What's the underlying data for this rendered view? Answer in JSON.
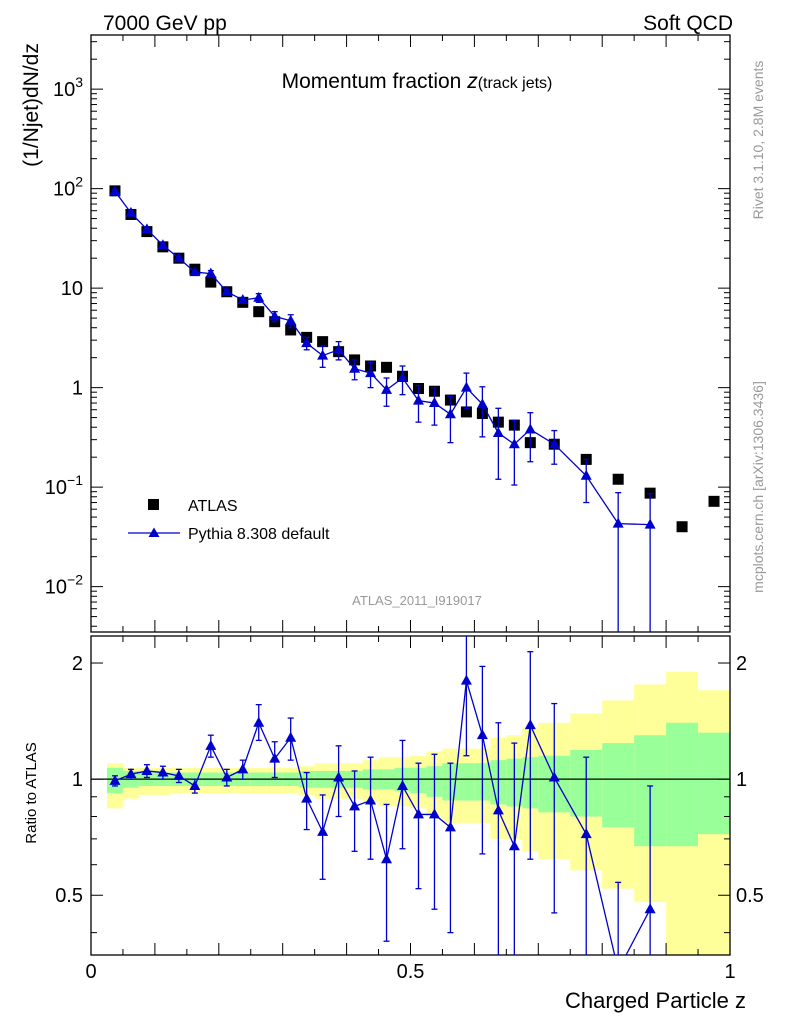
{
  "header": {
    "left": "7000 GeV pp",
    "right": "Soft QCD"
  },
  "side_labels": {
    "rivet": "Rivet 3.1.10,  2.8M events",
    "mcplots": "mcplots.cern.ch [arXiv:1306.3436]"
  },
  "colors": {
    "data": "#000000",
    "mc": "#0000cc",
    "band_inner": "#99ff99",
    "band_outer": "#ffff99"
  },
  "chart_data": [
    {
      "type": "scatter",
      "title": "Momentum fraction z(track jets)",
      "title_main": "Momentum fraction ",
      "title_italic": "z",
      "title_sub": "(track jets)",
      "ylabel": "(1/Njet)dN/dz",
      "analysis_label": "ATLAS_2011_I919017",
      "yscale": "log",
      "xlim": [
        0,
        1
      ],
      "ylim": [
        0.0035,
        3500
      ],
      "ytick_labels": [
        {
          "value": 0.01,
          "base": "10",
          "exp": "−2"
        },
        {
          "value": 0.1,
          "base": "10",
          "exp": "−1"
        },
        {
          "value": 1,
          "base": "1",
          "exp": ""
        },
        {
          "value": 10,
          "base": "10",
          "exp": ""
        },
        {
          "value": 100,
          "base": "10",
          "exp": "2"
        },
        {
          "value": 1000,
          "base": "10",
          "exp": "3"
        }
      ],
      "legend": {
        "position": "bottom-left",
        "entries": [
          "ATLAS",
          "Pythia 8.308 default"
        ]
      },
      "series": [
        {
          "name": "ATLAS",
          "marker": "square",
          "x": [
            0.0375,
            0.0625,
            0.0875,
            0.1125,
            0.1375,
            0.1625,
            0.1875,
            0.2125,
            0.2375,
            0.2625,
            0.2875,
            0.3125,
            0.3375,
            0.3625,
            0.3875,
            0.4125,
            0.4375,
            0.4625,
            0.4875,
            0.5125,
            0.5375,
            0.5625,
            0.5875,
            0.6125,
            0.6375,
            0.6625,
            0.6875,
            0.725,
            0.775,
            0.825,
            0.875,
            0.925,
            0.975
          ],
          "y": [
            95,
            55,
            37,
            26,
            20,
            15.5,
            11.5,
            9.2,
            7.2,
            5.8,
            4.6,
            3.8,
            3.2,
            2.9,
            2.3,
            1.9,
            1.65,
            1.6,
            1.3,
            0.98,
            0.92,
            0.75,
            0.57,
            0.55,
            0.45,
            0.42,
            0.28,
            0.27,
            0.19,
            0.12,
            0.087,
            0.04,
            0.072
          ]
        },
        {
          "name": "Pythia 8.308 default",
          "marker": "triangle",
          "x": [
            0.0375,
            0.0625,
            0.0875,
            0.1125,
            0.1375,
            0.1625,
            0.1875,
            0.2125,
            0.2375,
            0.2625,
            0.2875,
            0.3125,
            0.3375,
            0.3625,
            0.3875,
            0.4125,
            0.4375,
            0.4625,
            0.4875,
            0.5125,
            0.5375,
            0.5625,
            0.5875,
            0.6125,
            0.6375,
            0.6625,
            0.6875,
            0.725,
            0.775,
            0.825,
            0.875
          ],
          "y": [
            94,
            57,
            39,
            27,
            20,
            14.5,
            14,
            9.2,
            7.6,
            8.0,
            5.2,
            4.7,
            2.8,
            2.1,
            2.4,
            1.55,
            1.4,
            0.95,
            1.25,
            0.74,
            0.7,
            0.54,
            1.0,
            0.68,
            0.35,
            0.27,
            0.38,
            0.27,
            0.13,
            0.043,
            0.042
          ],
          "ylow": [
            90,
            55,
            37,
            26,
            19,
            14,
            13,
            8.8,
            7.2,
            7.2,
            4.6,
            4.0,
            2.4,
            1.6,
            1.9,
            1.2,
            1.0,
            0.65,
            0.85,
            0.45,
            0.42,
            0.28,
            0.62,
            0.32,
            0.12,
            0.105,
            0.18,
            0.17,
            0.07,
            0.003,
            0.003
          ],
          "yhigh": [
            98,
            59,
            41,
            28,
            21,
            15,
            15,
            9.6,
            8.0,
            8.8,
            5.8,
            5.4,
            3.2,
            2.6,
            2.9,
            1.9,
            1.8,
            1.25,
            1.65,
            1.05,
            1.0,
            0.82,
            1.4,
            1.02,
            0.62,
            0.47,
            0.56,
            0.37,
            0.19,
            0.088,
            0.086
          ]
        }
      ]
    },
    {
      "type": "scatter",
      "ylabel": "Ratio to ATLAS",
      "xlabel": "Charged Particle z",
      "xlim": [
        0,
        1
      ],
      "ylim": [
        0.35,
        2.35
      ],
      "yscale": "log",
      "xtick_labels": [
        {
          "value": 0,
          "label": "0"
        },
        {
          "value": 0.5,
          "label": "0.5"
        },
        {
          "value": 1,
          "label": "1"
        }
      ],
      "ytick_labels": [
        {
          "value": 0.5,
          "label": "0.5"
        },
        {
          "value": 1,
          "label": "1"
        },
        {
          "value": 2,
          "label": "2"
        }
      ],
      "bands": {
        "edges": [
          0.025,
          0.05,
          0.075,
          0.1,
          0.125,
          0.15,
          0.175,
          0.2,
          0.225,
          0.25,
          0.275,
          0.3,
          0.325,
          0.35,
          0.375,
          0.4,
          0.425,
          0.45,
          0.475,
          0.5,
          0.525,
          0.55,
          0.575,
          0.6,
          0.625,
          0.65,
          0.675,
          0.7,
          0.75,
          0.8,
          0.85,
          0.9,
          0.95,
          1.0
        ],
        "inner_low": [
          0.92,
          0.95,
          0.96,
          0.96,
          0.96,
          0.96,
          0.96,
          0.96,
          0.96,
          0.96,
          0.96,
          0.96,
          0.95,
          0.95,
          0.95,
          0.95,
          0.94,
          0.94,
          0.93,
          0.92,
          0.9,
          0.88,
          0.88,
          0.88,
          0.86,
          0.85,
          0.84,
          0.82,
          0.8,
          0.75,
          0.67,
          0.67,
          0.72
        ],
        "inner_high": [
          1.07,
          1.05,
          1.04,
          1.04,
          1.04,
          1.04,
          1.04,
          1.04,
          1.04,
          1.04,
          1.04,
          1.04,
          1.05,
          1.05,
          1.05,
          1.05,
          1.06,
          1.06,
          1.07,
          1.07,
          1.08,
          1.1,
          1.1,
          1.1,
          1.12,
          1.13,
          1.14,
          1.15,
          1.19,
          1.24,
          1.3,
          1.4,
          1.32
        ],
        "outer_low": [
          0.84,
          0.89,
          0.91,
          0.91,
          0.92,
          0.92,
          0.92,
          0.92,
          0.92,
          0.92,
          0.92,
          0.92,
          0.91,
          0.89,
          0.89,
          0.89,
          0.87,
          0.85,
          0.85,
          0.84,
          0.8,
          0.77,
          0.77,
          0.77,
          0.7,
          0.7,
          0.65,
          0.62,
          0.58,
          0.52,
          0.48,
          0.35,
          0.35
        ],
        "outer_high": [
          1.1,
          1.07,
          1.07,
          1.07,
          1.07,
          1.07,
          1.07,
          1.07,
          1.07,
          1.07,
          1.07,
          1.07,
          1.08,
          1.1,
          1.1,
          1.1,
          1.12,
          1.14,
          1.14,
          1.15,
          1.18,
          1.2,
          1.2,
          1.2,
          1.28,
          1.3,
          1.36,
          1.4,
          1.48,
          1.6,
          1.76,
          1.9,
          1.7
        ]
      },
      "series": [
        {
          "name": "Pythia 8.308 default",
          "marker": "triangle",
          "x": [
            0.0375,
            0.0625,
            0.0875,
            0.1125,
            0.1375,
            0.1625,
            0.1875,
            0.2125,
            0.2375,
            0.2625,
            0.2875,
            0.3125,
            0.3375,
            0.3625,
            0.3875,
            0.4125,
            0.4375,
            0.4625,
            0.4875,
            0.5125,
            0.5375,
            0.5625,
            0.5875,
            0.6125,
            0.6375,
            0.6625,
            0.6875,
            0.725,
            0.775,
            0.825,
            0.875
          ],
          "y": [
            0.99,
            1.03,
            1.05,
            1.04,
            1.02,
            0.96,
            1.22,
            1.01,
            1.06,
            1.4,
            1.13,
            1.28,
            0.89,
            0.73,
            1.01,
            0.85,
            0.88,
            0.62,
            0.96,
            0.81,
            0.81,
            0.75,
            1.8,
            1.3,
            0.83,
            0.67,
            1.38,
            1.01,
            0.72,
            0.32,
            0.46
          ],
          "ylow": [
            0.96,
            1.0,
            1.01,
            1.0,
            0.98,
            0.92,
            1.14,
            0.96,
            1.0,
            1.26,
            1.01,
            1.12,
            0.74,
            0.55,
            0.8,
            0.65,
            0.62,
            0.38,
            0.66,
            0.52,
            0.46,
            0.4,
            1.15,
            0.64,
            0.26,
            0.1,
            0.62,
            0.45,
            0.3,
            0.1,
            0.1
          ],
          "yhigh": [
            1.02,
            1.06,
            1.09,
            1.08,
            1.06,
            1.0,
            1.3,
            1.06,
            1.12,
            1.56,
            1.25,
            1.44,
            1.04,
            0.91,
            1.22,
            1.05,
            1.14,
            0.86,
            1.26,
            1.1,
            1.16,
            1.1,
            2.45,
            1.96,
            1.4,
            1.24,
            2.14,
            1.57,
            1.14,
            0.54,
            0.96
          ]
        }
      ]
    }
  ]
}
